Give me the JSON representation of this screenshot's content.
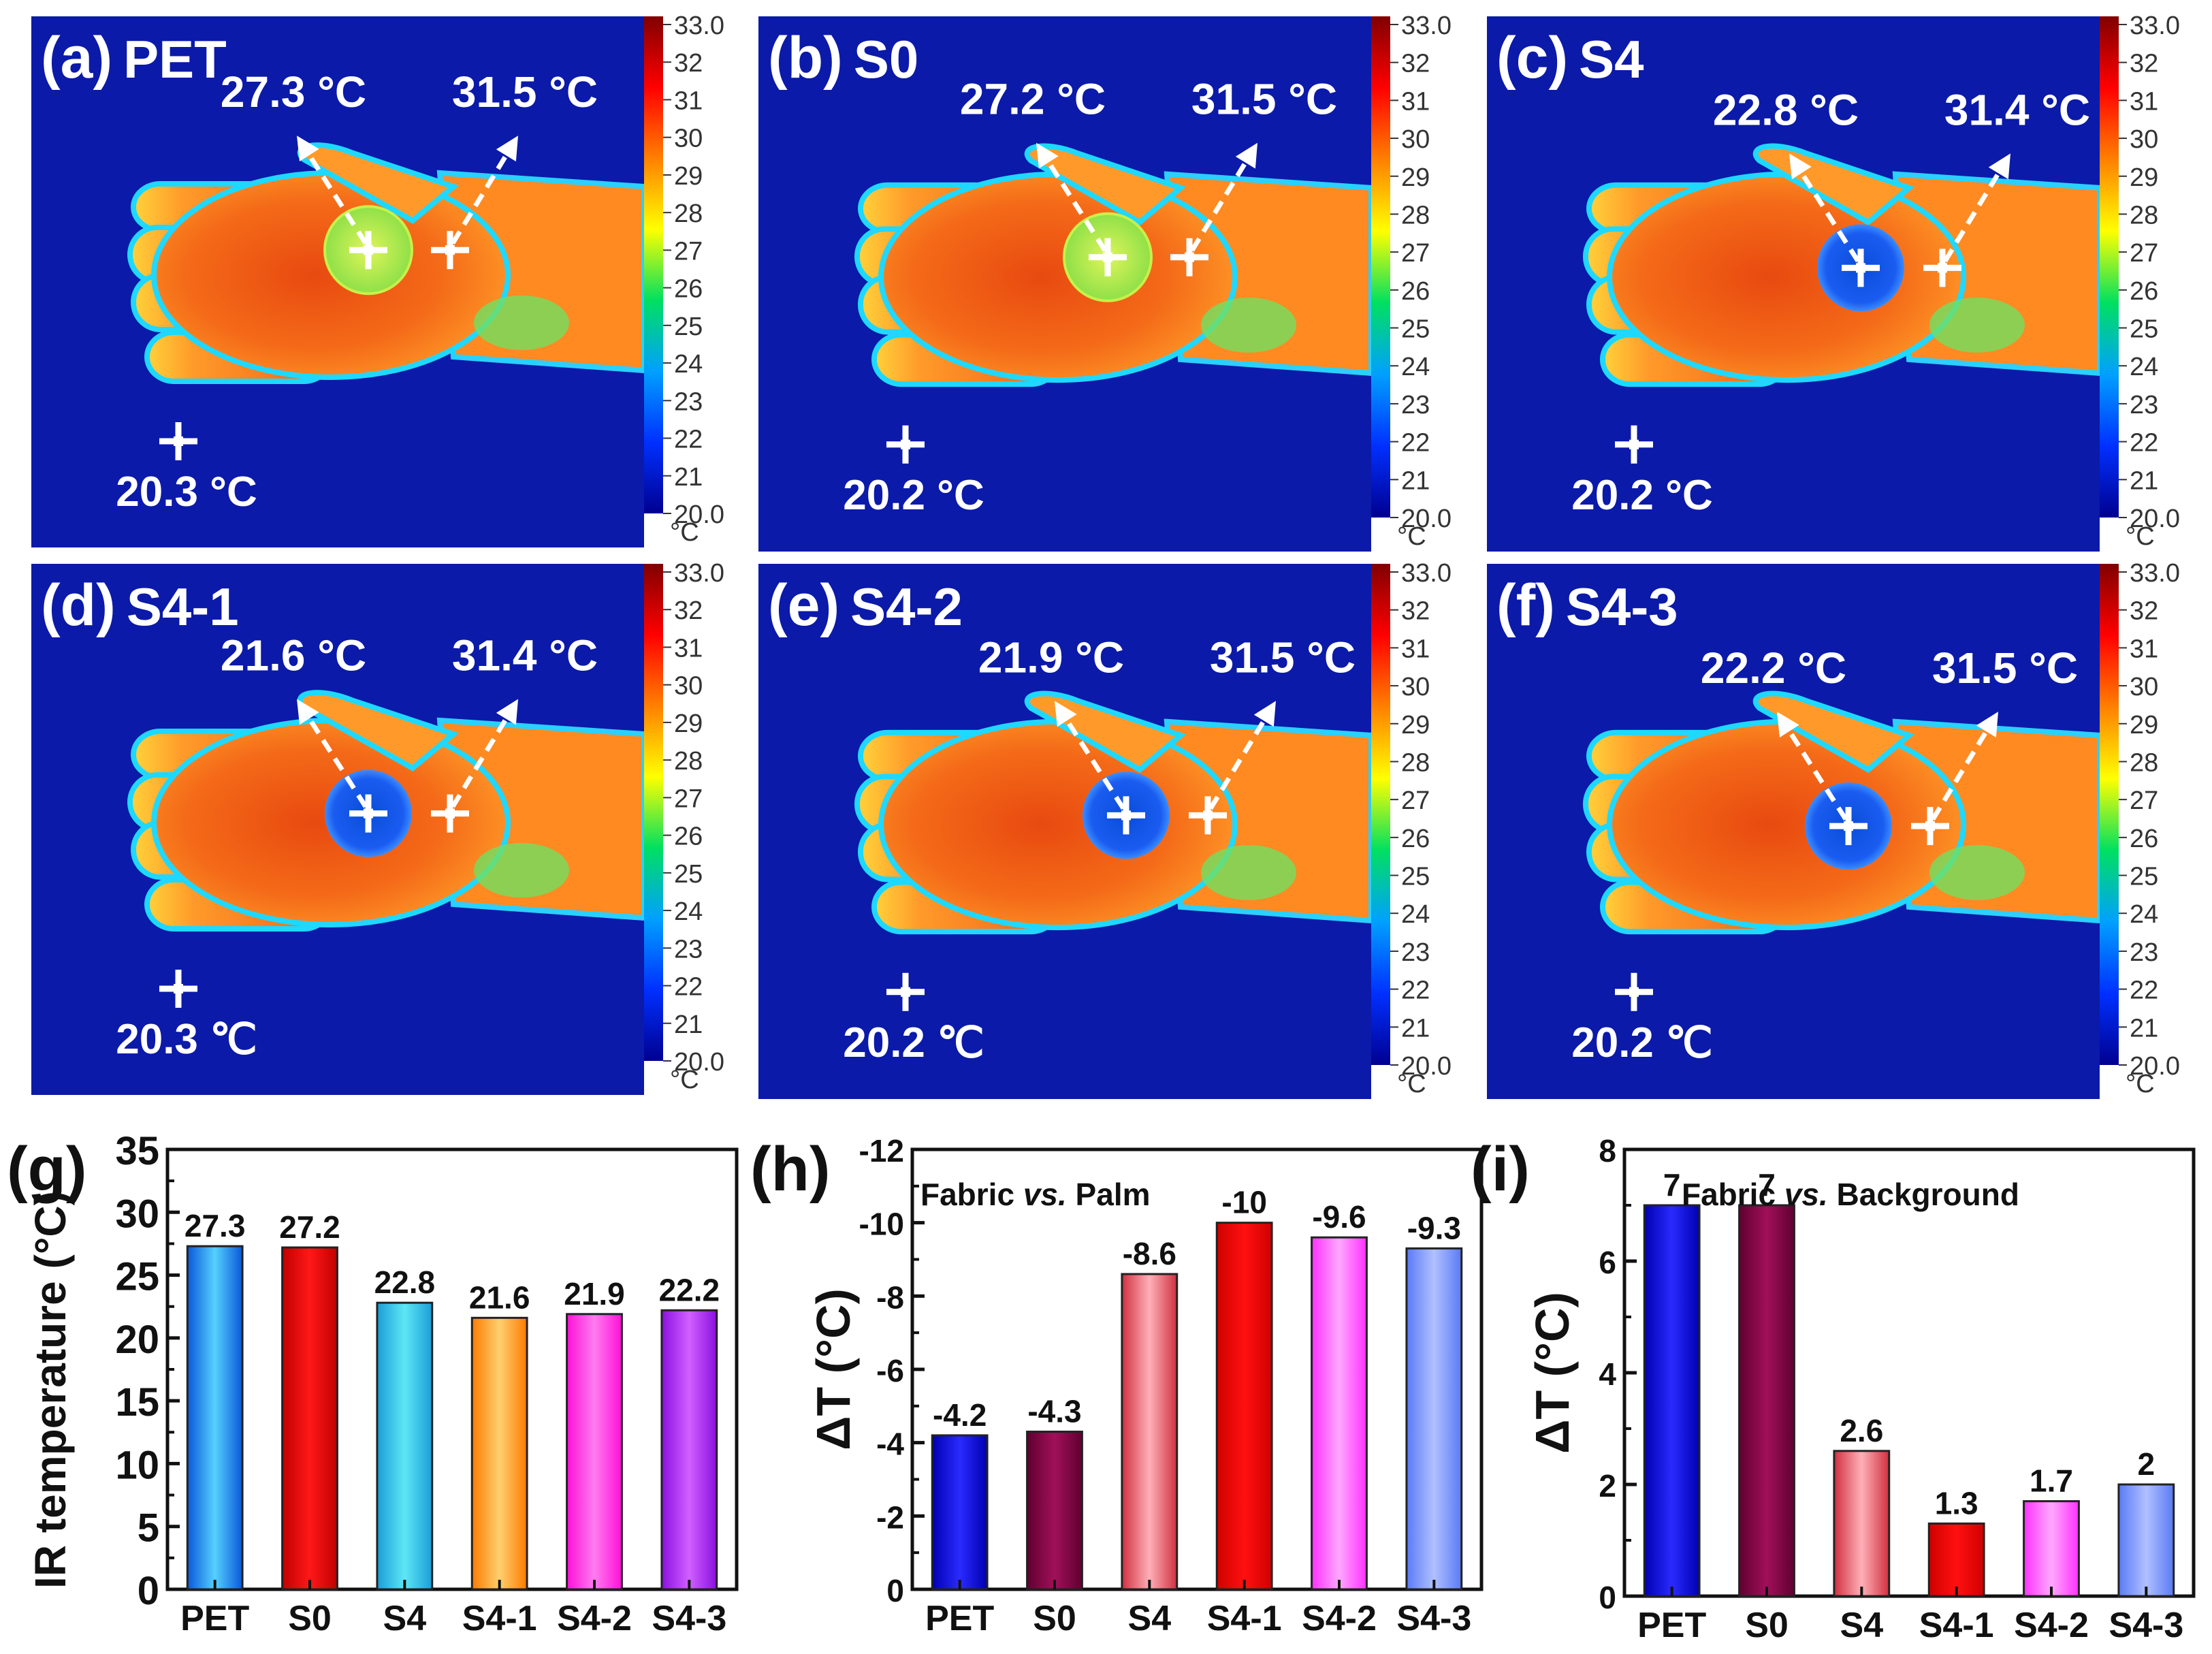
{
  "thermal_panels": [
    {
      "label": "(a)",
      "sample": "PET",
      "fabric": "27.3 °C",
      "palm": "31.5 °C",
      "background": "20.3 °C",
      "fabric_state": "warm"
    },
    {
      "label": "(b)",
      "sample": "S0",
      "fabric": "27.2 °C",
      "palm": "31.5 °C",
      "background": "20.2 °C",
      "fabric_state": "warm"
    },
    {
      "label": "(c)",
      "sample": "S4",
      "fabric": "22.8 °C",
      "palm": "31.4 °C",
      "background": "20.2 °C",
      "fabric_state": "cool"
    },
    {
      "label": "(d)",
      "sample": "S4-1",
      "fabric": "21.6 °C",
      "palm": "31.4 °C",
      "background": "20.3 ℃",
      "fabric_state": "cool"
    },
    {
      "label": "(e)",
      "sample": "S4-2",
      "fabric": "21.9 °C",
      "palm": "31.5 °C",
      "background": "20.2 ℃",
      "fabric_state": "cool"
    },
    {
      "label": "(f)",
      "sample": "S4-3",
      "fabric": "22.2 °C",
      "palm": "31.5 °C",
      "background": "20.2 ℃",
      "fabric_state": "cool"
    }
  ],
  "colorbar": {
    "ticks": [
      "33.0",
      "32",
      "31",
      "30",
      "29",
      "28",
      "27",
      "26",
      "25",
      "24",
      "23",
      "22",
      "21",
      "20.0"
    ],
    "unit": "°C",
    "colors": [
      "#800000",
      "#ff0000",
      "#ff8000",
      "#ffff00",
      "#00e060",
      "#00a0ff",
      "#0030ff",
      "#000090"
    ]
  },
  "chart_data": [
    {
      "label": "(g)",
      "type": "bar",
      "categories": [
        "PET",
        "S0",
        "S4",
        "S4-1",
        "S4-2",
        "S4-3"
      ],
      "values": [
        27.3,
        27.2,
        22.8,
        21.6,
        21.9,
        22.2
      ],
      "value_labels": [
        "27.3",
        "27.2",
        "22.8",
        "21.6",
        "21.9",
        "22.2"
      ],
      "ylabel": "IR temperature (°C)",
      "ylim": [
        0,
        35
      ],
      "yticks": [
        "0",
        "5",
        "10",
        "15",
        "20",
        "25",
        "30",
        "35"
      ],
      "inverted": false,
      "title": "",
      "colors": [
        [
          "#0a58d8",
          "#55d0ff"
        ],
        [
          "#c00000",
          "#ff1818"
        ],
        [
          "#1a9ed8",
          "#5ee6f5"
        ],
        [
          "#ff7a00",
          "#ffd070"
        ],
        [
          "#ff10d8",
          "#ff7cf0"
        ],
        [
          "#8a10e0",
          "#d060ff"
        ]
      ]
    },
    {
      "label": "(h)",
      "type": "bar",
      "categories": [
        "PET",
        "S0",
        "S4",
        "S4-1",
        "S4-2",
        "S4-3"
      ],
      "values": [
        -4.2,
        -4.3,
        -8.6,
        -10,
        -9.6,
        -9.3
      ],
      "value_labels": [
        "-4.2",
        "-4.3",
        "-8.6",
        "-10",
        "-9.6",
        "-9.3"
      ],
      "ylabel": "ΔT (°C)",
      "ylim": [
        0,
        -12
      ],
      "yticks": [
        "0",
        "-2",
        "-4",
        "-6",
        "-8",
        "-10",
        "-12"
      ],
      "inverted": true,
      "title_parts": [
        "Fabric ",
        "vs.",
        " Palm"
      ],
      "colors": [
        [
          "#0000b0",
          "#2a2aff"
        ],
        [
          "#600030",
          "#a0105a"
        ],
        [
          "#d03040",
          "#ffb0b8"
        ],
        [
          "#d00000",
          "#ff1010"
        ],
        [
          "#ff30ff",
          "#ffa8ff"
        ],
        [
          "#5a7af5",
          "#b0c0ff"
        ]
      ]
    },
    {
      "label": "(i)",
      "type": "bar",
      "categories": [
        "PET",
        "S0",
        "S4",
        "S4-1",
        "S4-2",
        "S4-3"
      ],
      "values": [
        7,
        7,
        2.6,
        1.3,
        1.7,
        2
      ],
      "value_labels": [
        "7",
        "7",
        "2.6",
        "1.3",
        "1.7",
        "2"
      ],
      "ylabel": "ΔT (°C)",
      "ylim": [
        0,
        8
      ],
      "yticks": [
        "0",
        "2",
        "4",
        "6",
        "8"
      ],
      "inverted": false,
      "title_parts": [
        "Fabric ",
        "vs.",
        " Background"
      ],
      "colors": [
        [
          "#0000b0",
          "#2a2aff"
        ],
        [
          "#600030",
          "#a0105a"
        ],
        [
          "#d03040",
          "#ffb0b8"
        ],
        [
          "#d00000",
          "#ff1010"
        ],
        [
          "#ff30ff",
          "#ffa8ff"
        ],
        [
          "#5a7af5",
          "#b0c0ff"
        ]
      ]
    }
  ]
}
